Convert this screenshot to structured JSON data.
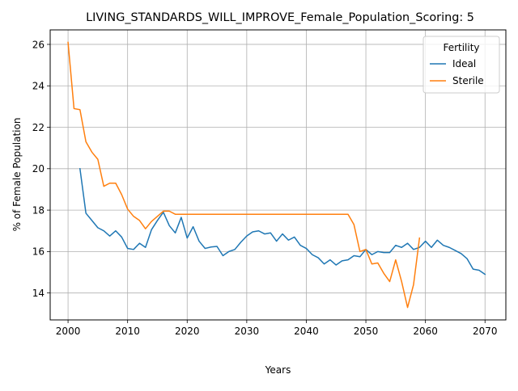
{
  "chart_data": {
    "type": "line",
    "title": "LIVING_STANDARDS_WILL_IMPROVE_Female_Population_Scoring: 5",
    "xlabel": "Years",
    "ylabel": "% of Female Population",
    "xlim": [
      1997,
      2073.5
    ],
    "ylim": [
      12.7,
      26.7
    ],
    "xticks": [
      2000,
      2010,
      2020,
      2030,
      2040,
      2050,
      2060,
      2070
    ],
    "yticks": [
      14,
      16,
      18,
      20,
      22,
      24,
      26
    ],
    "grid": true,
    "legend": {
      "title": "Fertility",
      "placement": "top-right"
    },
    "series": [
      {
        "name": "Ideal",
        "color": "#1f77b4",
        "x": [
          2002,
          2003,
          2004,
          2005,
          2006,
          2007,
          2008,
          2009,
          2010,
          2011,
          2012,
          2013,
          2014,
          2015,
          2016,
          2017,
          2018,
          2019,
          2020,
          2021,
          2022,
          2023,
          2024,
          2025,
          2026,
          2027,
          2028,
          2029,
          2030,
          2031,
          2032,
          2033,
          2034,
          2035,
          2036,
          2037,
          2038,
          2039,
          2040,
          2041,
          2042,
          2043,
          2044,
          2045,
          2046,
          2047,
          2048,
          2049,
          2050,
          2051,
          2052,
          2053,
          2054,
          2055,
          2056,
          2057,
          2058,
          2059,
          2060,
          2061,
          2062,
          2063,
          2064,
          2065,
          2066,
          2067,
          2068,
          2069,
          2070
        ],
        "y": [
          20.0,
          17.85,
          17.5,
          17.15,
          17.0,
          16.75,
          17.0,
          16.7,
          16.15,
          16.1,
          16.4,
          16.2,
          17.05,
          17.5,
          17.9,
          17.25,
          16.9,
          17.65,
          16.65,
          17.2,
          16.5,
          16.15,
          16.22,
          16.25,
          15.8,
          16.0,
          16.1,
          16.45,
          16.75,
          16.95,
          17.0,
          16.85,
          16.9,
          16.5,
          16.85,
          16.55,
          16.7,
          16.3,
          16.15,
          15.85,
          15.7,
          15.4,
          15.6,
          15.35,
          15.55,
          15.6,
          15.8,
          15.75,
          16.1,
          15.85,
          16.0,
          15.95,
          15.95,
          16.3,
          16.2,
          16.4,
          16.1,
          16.2,
          16.5,
          16.2,
          16.55,
          16.3,
          16.2,
          16.05,
          15.9,
          15.65,
          15.15,
          15.1,
          14.9
        ]
      },
      {
        "name": "Sterile",
        "color": "#ff7f0e",
        "x": [
          2000,
          2001,
          2002,
          2003,
          2004,
          2005,
          2006,
          2007,
          2008,
          2009,
          2010,
          2011,
          2012,
          2013,
          2014,
          2015,
          2016,
          2017,
          2018,
          2019,
          2020,
          2047,
          2048,
          2049,
          2050,
          2051,
          2052,
          2053,
          2054,
          2055,
          2056,
          2057,
          2058,
          2059
        ],
        "y": [
          26.1,
          22.9,
          22.85,
          21.3,
          20.8,
          20.45,
          19.15,
          19.3,
          19.3,
          18.75,
          18.05,
          17.7,
          17.5,
          17.1,
          17.45,
          17.7,
          17.95,
          17.95,
          17.8,
          17.8,
          17.8,
          17.8,
          17.3,
          16.0,
          16.1,
          15.4,
          15.45,
          14.95,
          14.55,
          15.6,
          14.55,
          13.3,
          14.4,
          16.65
        ]
      }
    ]
  }
}
